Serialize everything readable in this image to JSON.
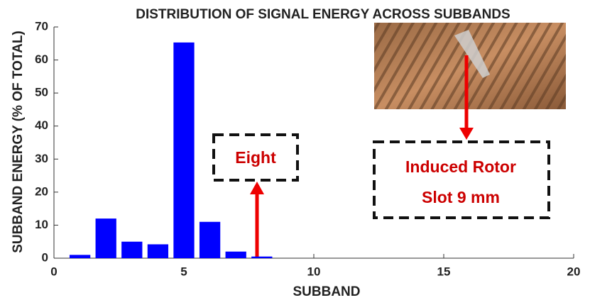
{
  "chart_data": {
    "type": "bar",
    "title": "DISTRIBUTION OF SIGNAL ENERGY ACROSS SUBBANDS",
    "xlabel": "SUBBAND",
    "ylabel": "SUBBAND ENERGY (% OF TOTAL)",
    "x": [
      1,
      2,
      3,
      4,
      5,
      6,
      7,
      8
    ],
    "values": [
      1,
      12,
      5,
      4.2,
      65.3,
      11,
      2,
      0.5
    ],
    "color": "#0000ff",
    "bar_width": 0.8,
    "xlim": [
      0,
      20
    ],
    "xticks": [
      0,
      5,
      10,
      15,
      20
    ],
    "ylim": [
      0,
      70
    ],
    "yticks": [
      0,
      10,
      20,
      30,
      40,
      50,
      60,
      70
    ],
    "annotations": [
      "Eight",
      "Induced Rotor",
      "Slot 9 mm"
    ],
    "annotation_color": "#cc0000"
  }
}
